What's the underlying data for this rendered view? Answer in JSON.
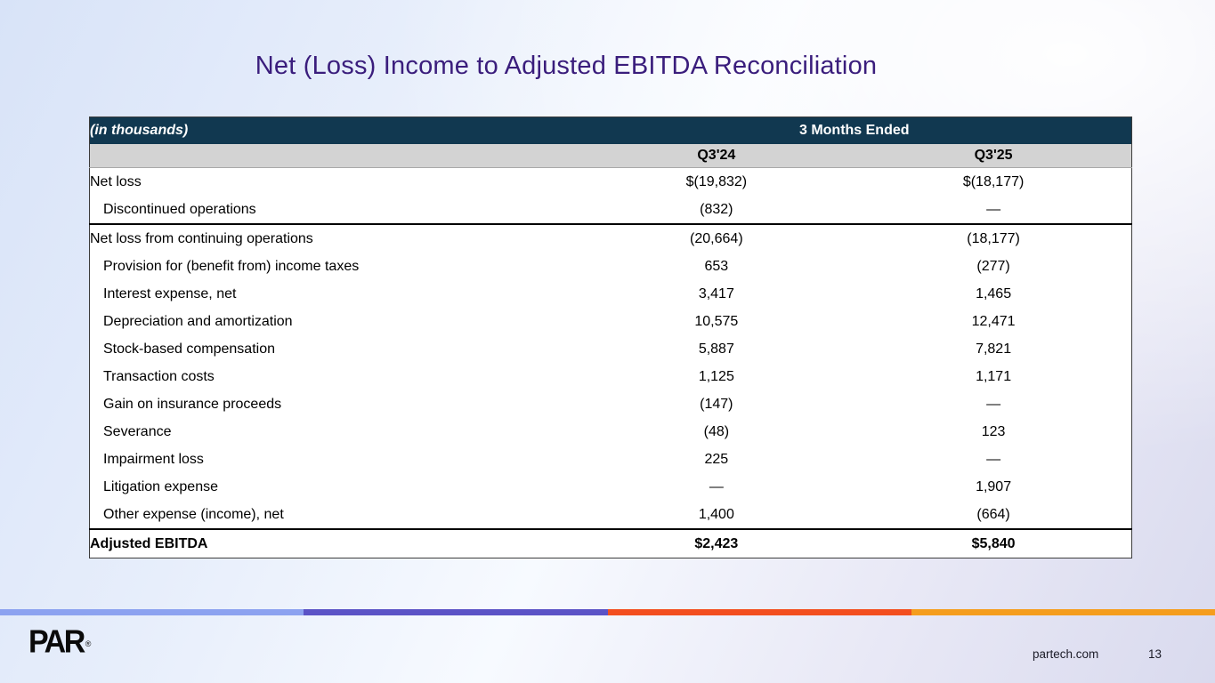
{
  "slide": {
    "title": "Net (Loss) Income to Adjusted EBITDA Reconciliation"
  },
  "table": {
    "unit_label": "(in thousands)",
    "period_header": "3 Months Ended",
    "columns": [
      "Q3'24",
      "Q3'25"
    ],
    "rows": [
      {
        "label": "Net loss",
        "q3_24": "$(19,832)",
        "q3_25": "$(18,177)"
      },
      {
        "label": "Discontinued operations",
        "q3_24": "(832)",
        "q3_25": "—"
      },
      {
        "label": "Net loss from continuing operations",
        "q3_24": "(20,664)",
        "q3_25": "(18,177)"
      },
      {
        "label": "Provision for (benefit from) income taxes",
        "q3_24": "653",
        "q3_25": "(277)"
      },
      {
        "label": "Interest expense, net",
        "q3_24": "3,417",
        "q3_25": "1,465"
      },
      {
        "label": "Depreciation and amortization",
        "q3_24": "10,575",
        "q3_25": "12,471"
      },
      {
        "label": "Stock-based compensation",
        "q3_24": "5,887",
        "q3_25": "7,821"
      },
      {
        "label": "Transaction costs",
        "q3_24": "1,125",
        "q3_25": "1,171"
      },
      {
        "label": "Gain on insurance proceeds",
        "q3_24": "(147)",
        "q3_25": "—"
      },
      {
        "label": "Severance",
        "q3_24": "(48)",
        "q3_25": "123"
      },
      {
        "label": "Impairment loss",
        "q3_24": "225",
        "q3_25": "—"
      },
      {
        "label": "Litigation expense",
        "q3_24": "—",
        "q3_25": "1,907"
      },
      {
        "label": "Other expense (income), net",
        "q3_24": "1,400",
        "q3_25": "(664)"
      },
      {
        "label": "Adjusted EBITDA",
        "q3_24": "$2,423",
        "q3_25": "$5,840"
      }
    ]
  },
  "footer": {
    "logo_text": "PAR",
    "logo_registered": "®",
    "website": "partech.com",
    "page_number": "13",
    "stripe_colors": [
      "#8ca2f0",
      "#5b53c6",
      "#f34e1f",
      "#f59d1d"
    ]
  },
  "colors": {
    "title_text": "#3a1d7c",
    "table_header_bg": "#113850",
    "table_subheader_bg": "#d3d3d3",
    "background_topleft": "#d8e3f8",
    "background_bottomright": "#d9daee"
  }
}
